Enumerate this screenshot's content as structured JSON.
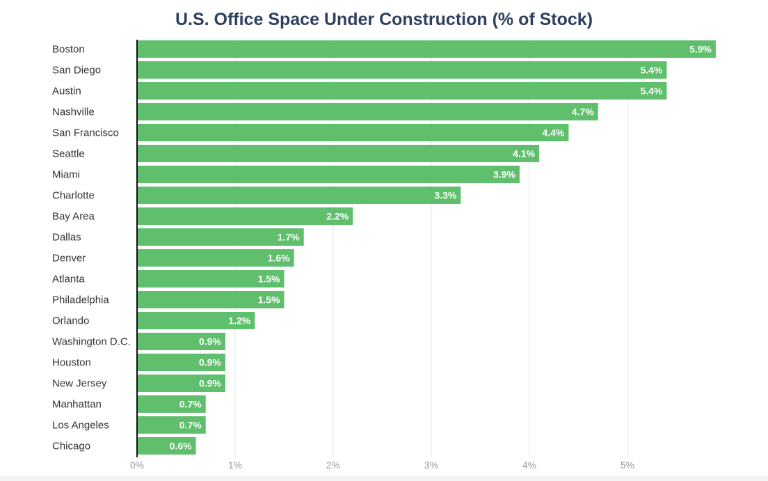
{
  "chart_data": {
    "type": "bar",
    "orientation": "horizontal",
    "title": "U.S. Office Space Under Construction (% of Stock)",
    "xlabel": "",
    "ylabel": "",
    "categories": [
      "Boston",
      "San Diego",
      "Austin",
      "Nashville",
      "San Francisco",
      "Seattle",
      "Miami",
      "Charlotte",
      "Bay Area",
      "Dallas",
      "Denver",
      "Atlanta",
      "Philadelphia",
      "Orlando",
      "Washington D.C.",
      "Houston",
      "New Jersey",
      "Manhattan",
      "Los Angeles",
      "Chicago"
    ],
    "values": [
      5.9,
      5.4,
      5.4,
      4.7,
      4.4,
      4.1,
      3.9,
      3.3,
      2.2,
      1.7,
      1.6,
      1.5,
      1.5,
      1.2,
      0.9,
      0.9,
      0.9,
      0.7,
      0.7,
      0.6
    ],
    "value_labels": [
      "5.9%",
      "5.4%",
      "5.4%",
      "4.7%",
      "4.4%",
      "4.1%",
      "3.9%",
      "3.3%",
      "2.2%",
      "1.7%",
      "1.6%",
      "1.5%",
      "1.5%",
      "1.2%",
      "0.9%",
      "0.9%",
      "0.9%",
      "0.7%",
      "0.7%",
      "0.6%"
    ],
    "xticks": [
      0,
      1,
      2,
      3,
      4,
      5
    ],
    "xtick_labels": [
      "0%",
      "1%",
      "2%",
      "3%",
      "4%",
      "5%"
    ],
    "xlim": [
      0,
      5.9
    ],
    "grid": true,
    "legend": "none",
    "bar_color": "#5fbf6c",
    "label_color": "#ffffff",
    "title_color": "#2f3f5f"
  }
}
